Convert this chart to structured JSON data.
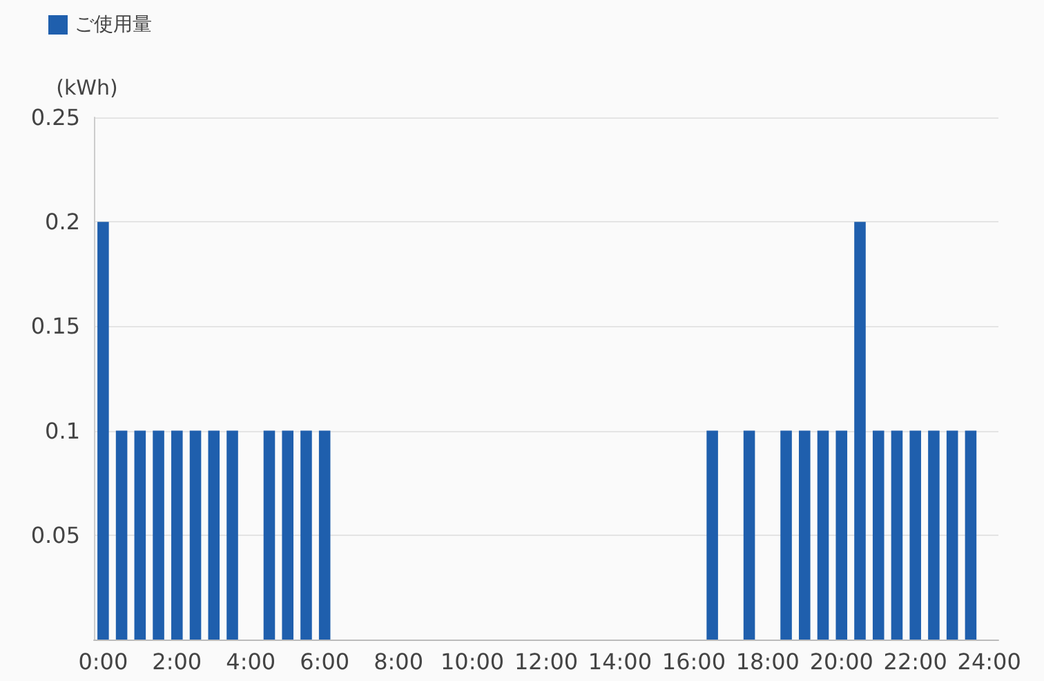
{
  "chart_data": {
    "type": "bar",
    "ylabel": "(kWh)",
    "categories": [
      "0:00",
      null,
      null,
      null,
      "2:00",
      null,
      null,
      null,
      "4:00",
      null,
      null,
      null,
      "6:00",
      null,
      null,
      null,
      "8:00",
      null,
      null,
      null,
      "10:00",
      null,
      null,
      null,
      "12:00",
      null,
      null,
      null,
      "14:00",
      null,
      null,
      null,
      "16:00",
      null,
      null,
      null,
      "18:00",
      null,
      null,
      null,
      "20:00",
      null,
      null,
      null,
      "22:00",
      null,
      null,
      null,
      "24:00"
    ],
    "series": [
      {
        "name": "ご使用量",
        "color": "#1f5fad",
        "values": [
          0.2,
          0.1,
          0.1,
          0.1,
          0.1,
          0.1,
          0.1,
          0.1,
          0,
          0.1,
          0.1,
          0.1,
          0.1,
          0,
          0,
          0,
          0,
          0,
          0,
          0,
          0,
          0,
          0,
          0,
          0,
          0,
          0,
          0,
          0,
          0,
          0,
          0,
          0,
          0.1,
          0,
          0.1,
          0,
          0.1,
          0.1,
          0.1,
          0.1,
          0.2,
          0.1,
          0.1,
          0.1,
          0.1,
          0.1,
          0.1,
          null
        ]
      }
    ],
    "ylim": [
      0,
      0.25
    ],
    "yticks": [
      0.05,
      0.1,
      0.15,
      0.2,
      0.25
    ],
    "grid": "y",
    "legend": "top left"
  }
}
